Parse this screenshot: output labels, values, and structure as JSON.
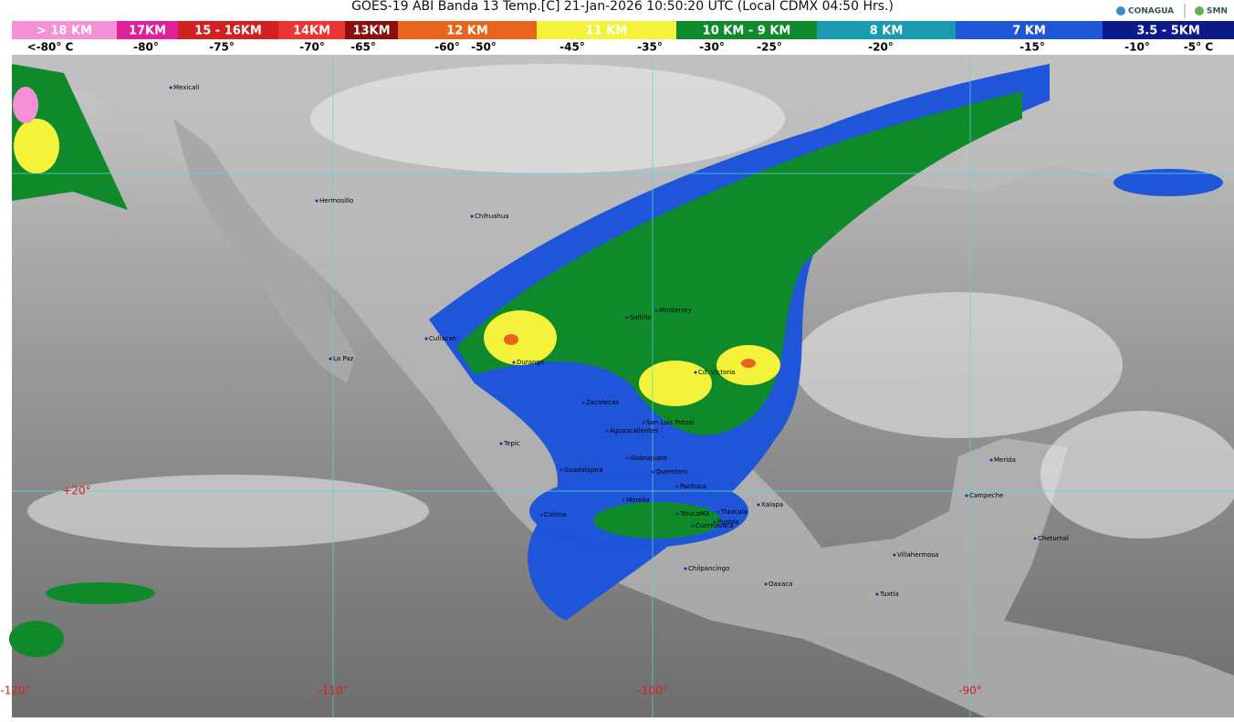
{
  "header": {
    "title": "GOES-19 ABI Banda 13 Temp.[C] 21-Jan-2026 10:50:20 UTC (Local CDMX  04:50 Hrs.)",
    "logos": [
      "CONAGUA",
      "SMN"
    ]
  },
  "legend": {
    "bands": [
      {
        "label": "> 18 KM",
        "color": "#f58fd6"
      },
      {
        "label": "17KM",
        "color": "#e0209a"
      },
      {
        "label": "15 - 16KM",
        "color": "#d21f1f"
      },
      {
        "label": "14KM",
        "color": "#ee3333"
      },
      {
        "label": "13KM",
        "color": "#8c0f0f"
      },
      {
        "label": "12 KM",
        "color": "#e8641a"
      },
      {
        "label": "11 KM",
        "color": "#f4f23a"
      },
      {
        "label": "10 KM - 9 KM",
        "color": "#0e8a2a"
      },
      {
        "label": "8 KM",
        "color": "#1a9ab0"
      },
      {
        "label": "7 KM",
        "color": "#1f55d8"
      },
      {
        "label": "3.5 - 5KM",
        "color": "#0c1a8a"
      }
    ],
    "temperatures": [
      "<-80° C",
      "-80°",
      "-75°",
      "-70°",
      "-65°",
      "-60°",
      "-50°",
      "-45°",
      "-35°",
      "-30°",
      "-25°",
      "-20°",
      "-15°",
      "-10°",
      "-5° C"
    ]
  },
  "map": {
    "grid_labels": [
      "+20°",
      "-120°",
      "-110°",
      "-100°",
      "-90°"
    ],
    "cities": [
      "Mexicali",
      "Hermosillo",
      "Chihuahua",
      "Culiacan",
      "La Paz",
      "Durango",
      "Saltillo",
      "Monterrey",
      "Cd. Victoria",
      "Zacatecas",
      "San Luis Potosi",
      "Aguascalientes",
      "Tepic",
      "Guadalajara",
      "Guanajuato",
      "Queretaro",
      "Pachuca",
      "Morelia",
      "Colima",
      "TolucaMX",
      "Tlaxcala",
      "Xalapa",
      "Puebla",
      "Cuernavaca",
      "Chilpancingo",
      "Oaxaca",
      "Villahermosa",
      "Tuxtla",
      "Campeche",
      "Merida",
      "Chetumal"
    ]
  }
}
